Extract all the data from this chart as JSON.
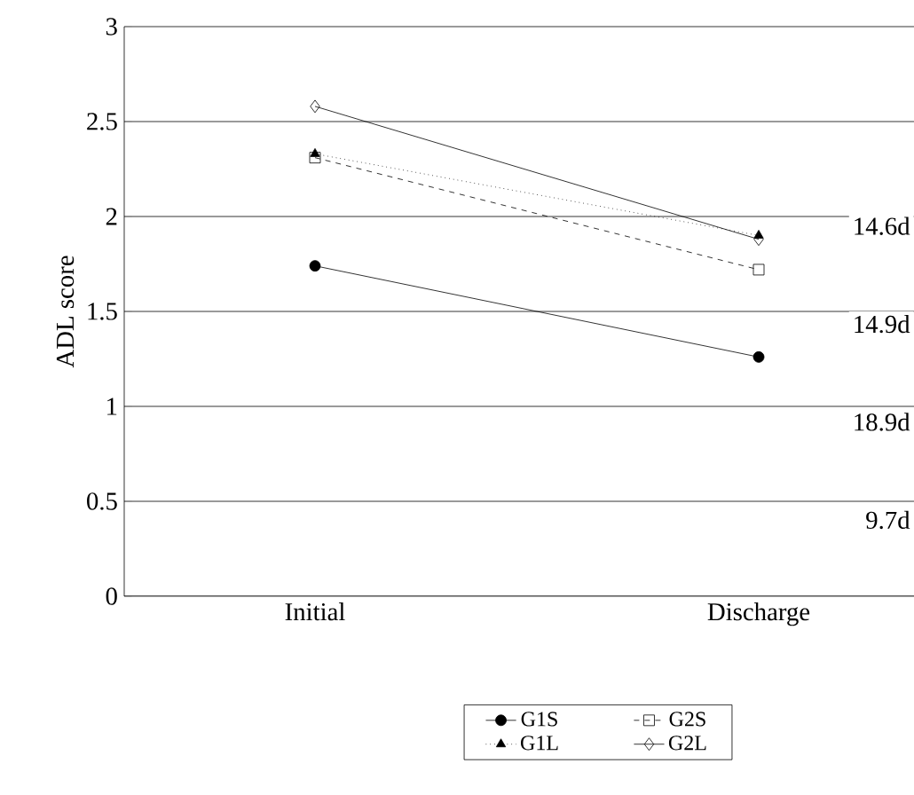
{
  "chart_data": {
    "type": "line",
    "ylabel": "ADL score",
    "categories": [
      "Initial",
      "Discharge"
    ],
    "series": [
      {
        "name": "G1S",
        "color": "#000000",
        "values": [
          1.74,
          1.26
        ],
        "marker": "circle",
        "line_style": "solid"
      },
      {
        "name": "G1L",
        "color": "#000000",
        "values": [
          2.33,
          1.9
        ],
        "marker": "triangle",
        "line_style": "dotted"
      },
      {
        "name": "G2S",
        "color": "#000000",
        "values": [
          2.31,
          1.72
        ],
        "marker": "square",
        "line_style": "dashed"
      },
      {
        "name": "G2L",
        "color": "#000000",
        "values": [
          2.58,
          1.88
        ],
        "marker": "diamond",
        "line_style": "solid"
      }
    ],
    "ylim": [
      0,
      3
    ],
    "yticks": [
      0,
      0.5,
      1,
      1.5,
      2,
      2.5,
      3
    ],
    "grid": "y",
    "legend": "bottom",
    "annotations": [
      "14.6d",
      "14.9d",
      "18.9d",
      "9.7d"
    ]
  }
}
